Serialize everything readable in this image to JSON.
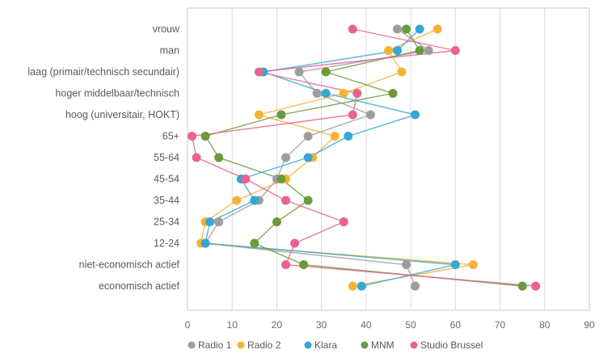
{
  "chart_data": {
    "type": "line",
    "categories": [
      "vrouw",
      "man",
      "laag (primair/technisch secundair)",
      "hoger middelbaar/technisch",
      "hoog (universitair, HOKT)",
      "65+",
      "55-64",
      "45-54",
      "35-44",
      "25-34",
      "12-24",
      "niet-economisch actief",
      "economisch actief"
    ],
    "xlim": [
      0,
      90
    ],
    "xticks": [
      0,
      10,
      20,
      30,
      40,
      50,
      60,
      70,
      80,
      90
    ],
    "grid": true,
    "legend_position": "bottom",
    "series": [
      {
        "name": "Radio 1",
        "color": "#9e9e9e",
        "values": [
          47,
          54,
          25,
          29,
          41,
          27,
          22,
          20,
          16,
          7,
          4,
          49,
          51
        ]
      },
      {
        "name": "Radio 2",
        "color": "#f5b335",
        "values": [
          56,
          45,
          48,
          35,
          16,
          33,
          28,
          22,
          11,
          4,
          3,
          64,
          37
        ]
      },
      {
        "name": "Klara",
        "color": "#35a7d5",
        "values": [
          52,
          47,
          17,
          31,
          51,
          36,
          27,
          12,
          15,
          5,
          4,
          60,
          39
        ]
      },
      {
        "name": "MNM",
        "color": "#6a9a3a",
        "values": [
          49,
          52,
          31,
          46,
          21,
          4,
          7,
          21,
          27,
          20,
          15,
          26,
          75
        ]
      },
      {
        "name": "Studio Brussel",
        "color": "#e8638e",
        "values": [
          37,
          60,
          16,
          38,
          37,
          1,
          2,
          13,
          22,
          35,
          24,
          22,
          78
        ]
      }
    ]
  }
}
